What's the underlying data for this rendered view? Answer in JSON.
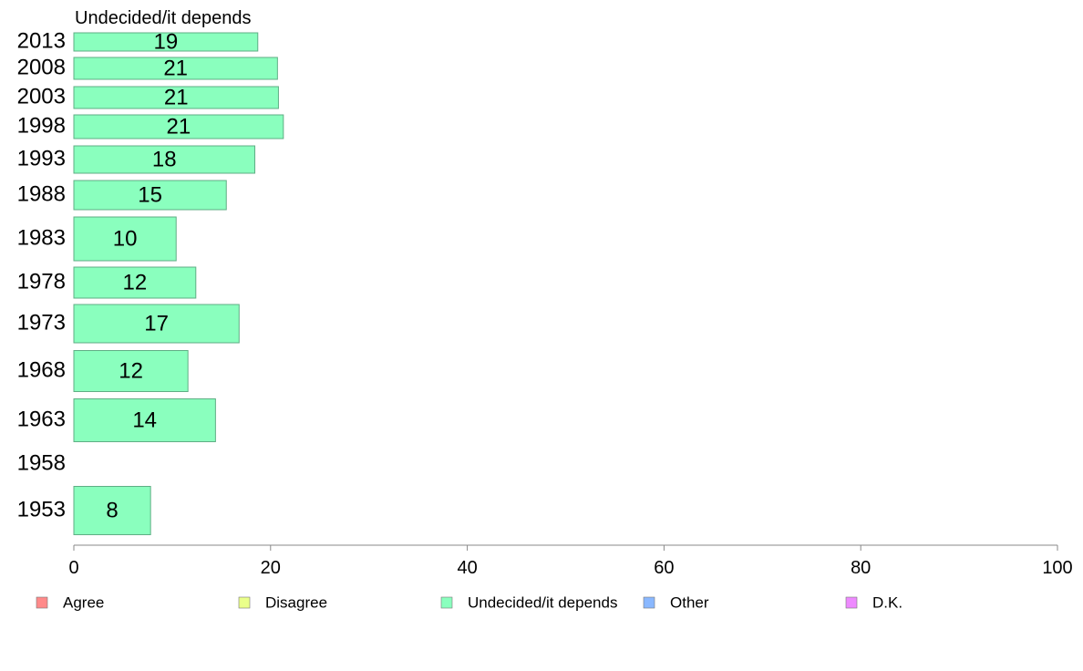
{
  "chart_data": {
    "type": "bar",
    "orientation": "horizontal",
    "series_title": "Undecided/it depends",
    "categories": [
      "2013",
      "2008",
      "2003",
      "1998",
      "1993",
      "1988",
      "1983",
      "1978",
      "1973",
      "1968",
      "1963",
      "1958",
      "1953"
    ],
    "values": [
      18.7,
      20.7,
      20.8,
      21.3,
      18.4,
      15.5,
      10.4,
      12.4,
      16.8,
      11.6,
      14.4,
      null,
      7.8
    ],
    "labels": [
      "19",
      "21",
      "21",
      "21",
      "18",
      "15",
      "10",
      "12",
      "17",
      "12",
      "14",
      "",
      "8"
    ],
    "xlim": [
      0,
      100
    ],
    "xticks": [
      "0",
      "20",
      "40",
      "60",
      "80",
      "100"
    ],
    "grid": false,
    "legend_position": "bottom",
    "legend": [
      {
        "name": "Agree",
        "color": "#ff8a8a"
      },
      {
        "name": "Disagree",
        "color": "#eaff8a"
      },
      {
        "name": "Undecided/it depends",
        "color": "#8affbe"
      },
      {
        "name": "Other",
        "color": "#8ab8ff"
      },
      {
        "name": "D.K.",
        "color": "#ee8aff"
      }
    ],
    "bar_color": "#8affbe"
  }
}
